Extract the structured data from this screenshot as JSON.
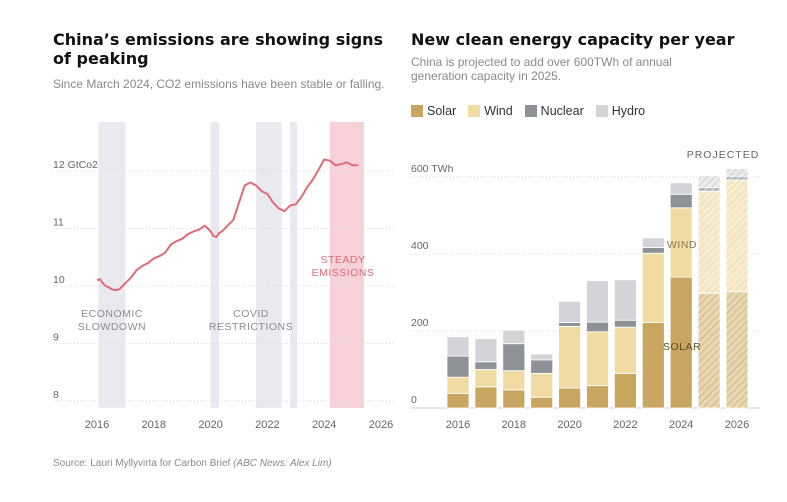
{
  "left": {
    "title": "China’s emissions are showing signs of peaking",
    "subtitle": "Since March 2024, CO2 emissions have been stable or falling."
  },
  "right": {
    "title": "New clean energy capacity per year",
    "subtitle": "China is projected to add over 600TWh of annual generation capacity in 2025."
  },
  "source": {
    "text": "Source: Lauri Myllyvirta for Carbon Brief",
    "credit": "(ABC News: Alex Lim)"
  },
  "colors": {
    "line": "#e06a7a",
    "band": "#e9e9f0",
    "steady_band": "#f6d2d8",
    "solar": "#c9a660",
    "wind": "#f0dba3",
    "nuclear": "#8e9196",
    "hydro": "#d3d4d8"
  },
  "chart_data": [
    {
      "type": "line",
      "title": "China’s emissions are showing signs of peaking",
      "ylabel": "",
      "ylim": [
        8,
        12.8
      ],
      "xlim": [
        2015.4,
        2026.2
      ],
      "y_ticks": [
        8,
        9,
        10,
        11,
        12
      ],
      "y_tick_labels": [
        "8",
        "9",
        "10",
        "11",
        "12 GtCo2"
      ],
      "x_ticks": [
        "2016",
        "2018",
        "2020",
        "2022",
        "2024",
        "2026"
      ],
      "annotations": [
        "ECONOMIC",
        "SLOWDOWN",
        "COVID",
        "RESTRICTIONS",
        "STEADY",
        "EMISSIONS"
      ],
      "grid": "horizontal",
      "series": [
        {
          "x": [
            2016.0,
            2016.1,
            2016.2,
            2016.3,
            2016.4,
            2016.5,
            2016.6,
            2016.7,
            2016.8,
            2016.9,
            2017.0,
            2017.2,
            2017.4,
            2017.6,
            2017.8,
            2018.0,
            2018.2,
            2018.4,
            2018.6,
            2018.8,
            2019.0,
            2019.2,
            2019.4,
            2019.6,
            2019.8,
            2020.0,
            2020.1,
            2020.2,
            2020.3,
            2020.4,
            2020.6,
            2020.8,
            2021.0,
            2021.2,
            2021.4,
            2021.6,
            2021.8,
            2022.0,
            2022.2,
            2022.4,
            2022.6,
            2022.8,
            2023.0,
            2023.2,
            2023.4,
            2023.6,
            2023.8,
            2024.0,
            2024.2,
            2024.4,
            2024.6,
            2024.8,
            2025.0,
            2025.2
          ],
          "values": [
            10.1,
            10.12,
            10.05,
            10.0,
            9.98,
            9.95,
            9.93,
            9.93,
            9.95,
            10.0,
            10.05,
            10.15,
            10.28,
            10.35,
            10.4,
            10.48,
            10.52,
            10.58,
            10.72,
            10.78,
            10.82,
            10.9,
            10.95,
            10.98,
            11.05,
            10.95,
            10.87,
            10.85,
            10.92,
            10.95,
            11.05,
            11.15,
            11.45,
            11.75,
            11.8,
            11.75,
            11.65,
            11.6,
            11.45,
            11.35,
            11.3,
            11.4,
            11.42,
            11.55,
            11.72,
            11.85,
            12.02,
            12.2,
            12.18,
            12.1,
            12.12,
            12.15,
            12.1,
            12.1
          ]
        }
      ]
    },
    {
      "type": "bar",
      "title": "New clean energy capacity per year",
      "categories": [
        "2016",
        "2017",
        "2018",
        "2019",
        "2020",
        "2021",
        "2022",
        "2023",
        "2024",
        "2025",
        "2026"
      ],
      "x_tick_labels": [
        "2016",
        "2018",
        "2020",
        "2022",
        "2024",
        "2026"
      ],
      "y_ticks": [
        0,
        200,
        400,
        600
      ],
      "y_tick_labels": [
        "0",
        "200",
        "400",
        "600 TWh"
      ],
      "ylim": [
        0,
        660
      ],
      "legend_position": "top-left",
      "grid": "horizontal",
      "projected_from": "2025",
      "annotations": [
        "PROJECTED",
        "WIND",
        "SOLAR"
      ],
      "series": [
        {
          "name": "Solar",
          "values": [
            38,
            55,
            47,
            28,
            52,
            58,
            90,
            222,
            340,
            298,
            302
          ]
        },
        {
          "name": "Wind",
          "values": [
            42,
            45,
            50,
            62,
            160,
            140,
            120,
            180,
            180,
            265,
            290
          ]
        },
        {
          "name": "Nuclear",
          "values": [
            55,
            20,
            70,
            35,
            10,
            25,
            18,
            15,
            35,
            10,
            10
          ]
        },
        {
          "name": "Hydro",
          "values": [
            50,
            60,
            35,
            15,
            55,
            108,
            105,
            25,
            30,
            30,
            20
          ]
        }
      ]
    }
  ]
}
